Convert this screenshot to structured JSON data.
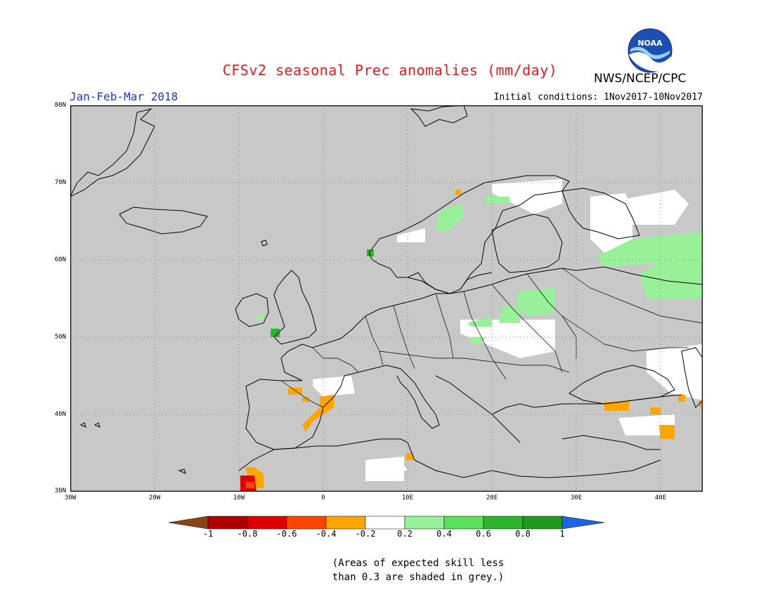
{
  "header": {
    "title": "CFSv2 seasonal Prec anomalies (mm/day)",
    "agency": "NWS/NCEP/CPC",
    "period": "Jan-Feb-Mar 2018",
    "initial_conditions": "Initial conditions: 1Nov2017-10Nov2017",
    "logo_text": "NOAA"
  },
  "map": {
    "background_color": "#c8c8c8",
    "lat_labels": [
      "80N",
      "70N",
      "60N",
      "50N",
      "40N",
      "30N"
    ],
    "lon_labels": [
      "30W",
      "20W",
      "10W",
      "0",
      "10E",
      "20E",
      "30E",
      "40E"
    ]
  },
  "legend": {
    "tick_labels": [
      "-1",
      "-0.8",
      "-0.6",
      "-0.4",
      "-0.2",
      "0.2",
      "0.4",
      "0.6",
      "0.8",
      "1"
    ],
    "colors": [
      "#8b4513",
      "#b00000",
      "#e00000",
      "#ff4500",
      "#ffa500",
      "#ffffff",
      "#98f098",
      "#5ae05a",
      "#2cb42c",
      "#1e9b1e",
      "#1e64e6"
    ],
    "note_line1": "(Areas of expected skill less",
    "note_line2": "than 0.3 are shaded in grey.)"
  }
}
